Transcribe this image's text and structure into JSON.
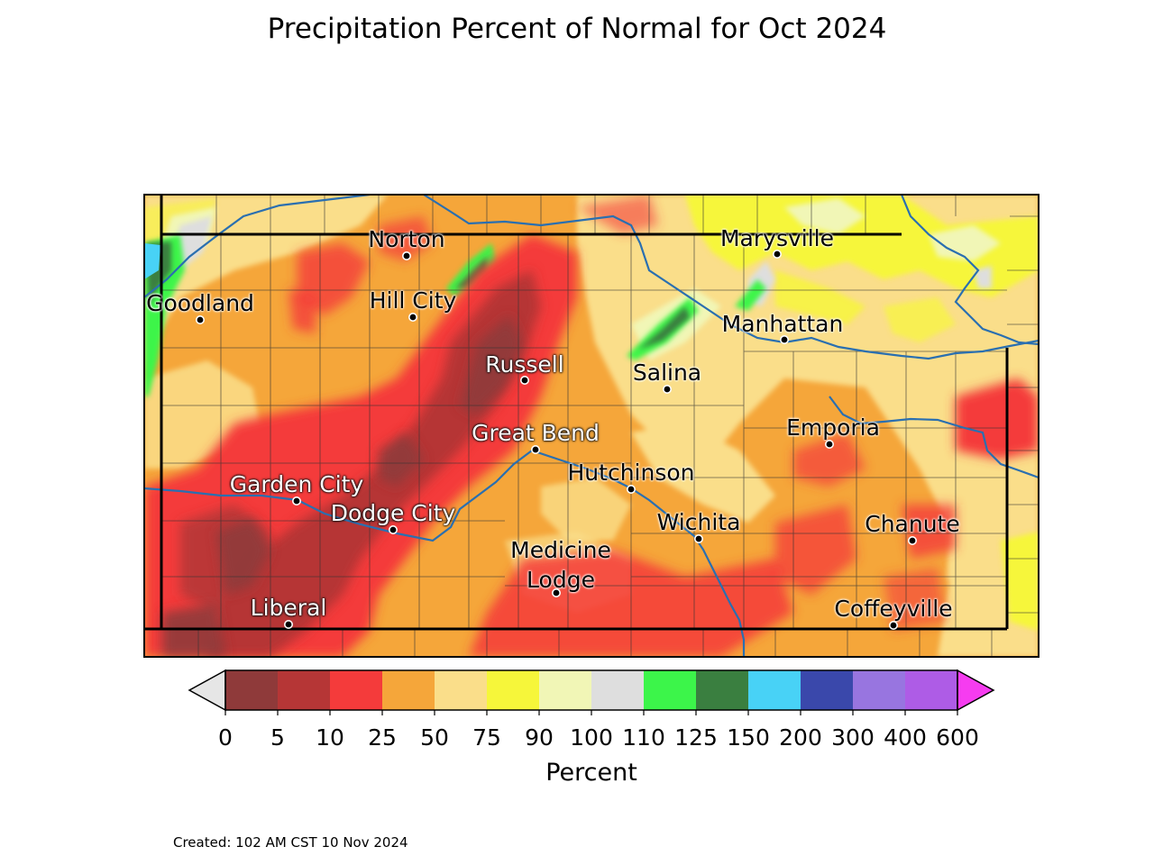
{
  "title": "Precipitation Percent of Normal for Oct 2024",
  "created": "Created: 102 AM CST 10 Nov 2024",
  "colorbar": {
    "label": "Percent",
    "ticks": [
      "0",
      "5",
      "10",
      "25",
      "50",
      "75",
      "90",
      "100",
      "110",
      "125",
      "150",
      "200",
      "300",
      "400",
      "600"
    ],
    "colors": [
      "#8f3a3a",
      "#b63636",
      "#f43b3b",
      "#f5a63a",
      "#fade8a",
      "#f6f63a",
      "#f1f6b6",
      "#dedede",
      "#3cf54a",
      "#3a7f40",
      "#48d2f6",
      "#3a48ab",
      "#9875e0",
      "#ae5ce6"
    ],
    "under_color": "#e6e6e6",
    "over_color": "#f63cf0"
  },
  "cities": [
    {
      "name": "Norton",
      "style": "dark"
    },
    {
      "name": "Marysville",
      "style": "dark"
    },
    {
      "name": "Goodland",
      "style": "dark"
    },
    {
      "name": "Hill City",
      "style": "dark"
    },
    {
      "name": "Manhattan",
      "style": "dark"
    },
    {
      "name": "Russell",
      "style": "light"
    },
    {
      "name": "Salina",
      "style": "dark"
    },
    {
      "name": "Great Bend",
      "style": "light"
    },
    {
      "name": "Emporia",
      "style": "dark"
    },
    {
      "name": "Hutchinson",
      "style": "dark"
    },
    {
      "name": "Garden City",
      "style": "light"
    },
    {
      "name": "Dodge City",
      "style": "light"
    },
    {
      "name": "Wichita",
      "style": "dark"
    },
    {
      "name": "Chanute",
      "style": "dark"
    },
    {
      "name": "Medicine Lodge",
      "style": "dark"
    },
    {
      "name": "Coffeyville",
      "style": "dark"
    },
    {
      "name": "Liberal",
      "style": "light"
    }
  ]
}
